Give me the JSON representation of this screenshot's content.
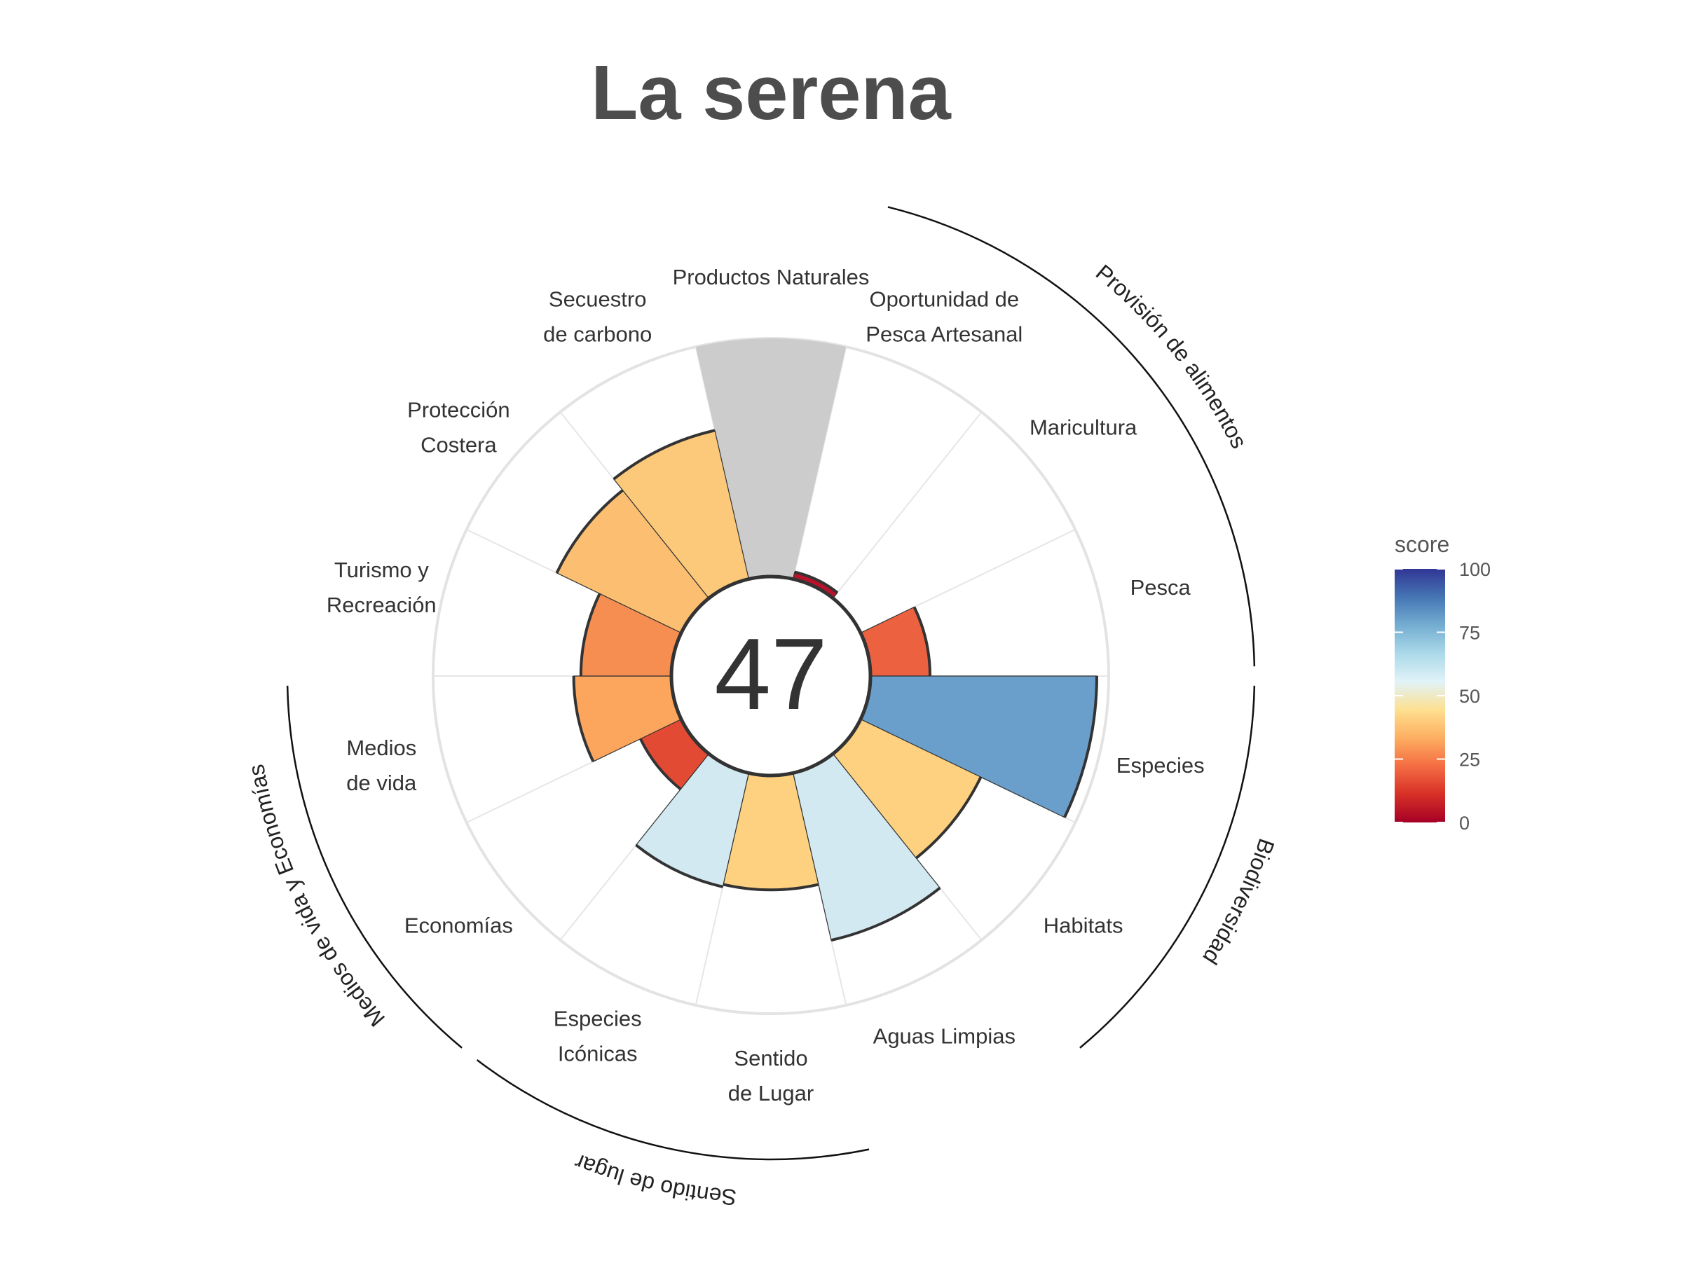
{
  "title": "La serena",
  "center_score": "47",
  "chart_data": {
    "type": "bar",
    "subtype": "polar-flower",
    "title": "La serena",
    "center_value": 47,
    "ylim": [
      0,
      100
    ],
    "categories": [
      "Productos Naturales",
      "Oportunidad de Pesca Artesanal",
      "Maricultura",
      "Pesca",
      "Especies",
      "Habitats",
      "Aguas Limpias",
      "Sentido de Lugar",
      "Especies Icónicas",
      "Economías",
      "Medios de vida",
      "Turismo y Recreación",
      "Protección Costera",
      "Secuestro de carbono"
    ],
    "label_lines": [
      [
        "Productos Naturales"
      ],
      [
        "Oportunidad de",
        "Pesca Artesanal"
      ],
      [
        "Maricultura"
      ],
      [
        "Pesca"
      ],
      [
        "Especies"
      ],
      [
        "Habitats"
      ],
      [
        "Aguas Limpias"
      ],
      [
        "Sentido",
        "de Lugar"
      ],
      [
        "Especies",
        "Icónicas"
      ],
      [
        "Economías"
      ],
      [
        "Medios",
        "de vida"
      ],
      [
        "Turismo y",
        "Recreación"
      ],
      [
        "Protección",
        "Costera"
      ],
      [
        "Secuestro",
        "de carbono"
      ]
    ],
    "values": [
      null,
      3,
      null,
      25,
      95,
      56,
      72,
      48,
      49,
      19,
      41,
      38,
      58,
      64
    ],
    "colors": [
      "#cccccc",
      "#b8132a",
      "#ffffff",
      "#ec6241",
      "#6a9fcb",
      "#fdd17f",
      "#d2e9f2",
      "#fdd17f",
      "#d2e9f2",
      "#e34a33",
      "#fca55d",
      "#f68d51",
      "#fcbf72",
      "#fcc97a"
    ],
    "groups": [
      {
        "label": "Provisión de alimentos",
        "categories": [
          "Oportunidad de Pesca Artesanal",
          "Maricultura",
          "Pesca"
        ]
      },
      {
        "label": "Biodiversidad",
        "categories": [
          "Especies",
          "Habitats"
        ]
      },
      {
        "label": "Sentido de lugar",
        "categories": [
          "Sentido de Lugar",
          "Especies Icónicas"
        ]
      },
      {
        "label": "Medios de vida y Economías",
        "categories": [
          "Economías",
          "Medios de vida"
        ]
      }
    ],
    "legend": {
      "title": "score",
      "ticks": [
        100,
        75,
        50,
        25,
        0
      ],
      "placement": "right",
      "gradient": [
        "#a50026",
        "#d73027",
        "#f46d43",
        "#fdae61",
        "#fee090",
        "#e0f3f8",
        "#abd9e9",
        "#74add1",
        "#4575b4",
        "#313695"
      ]
    }
  }
}
